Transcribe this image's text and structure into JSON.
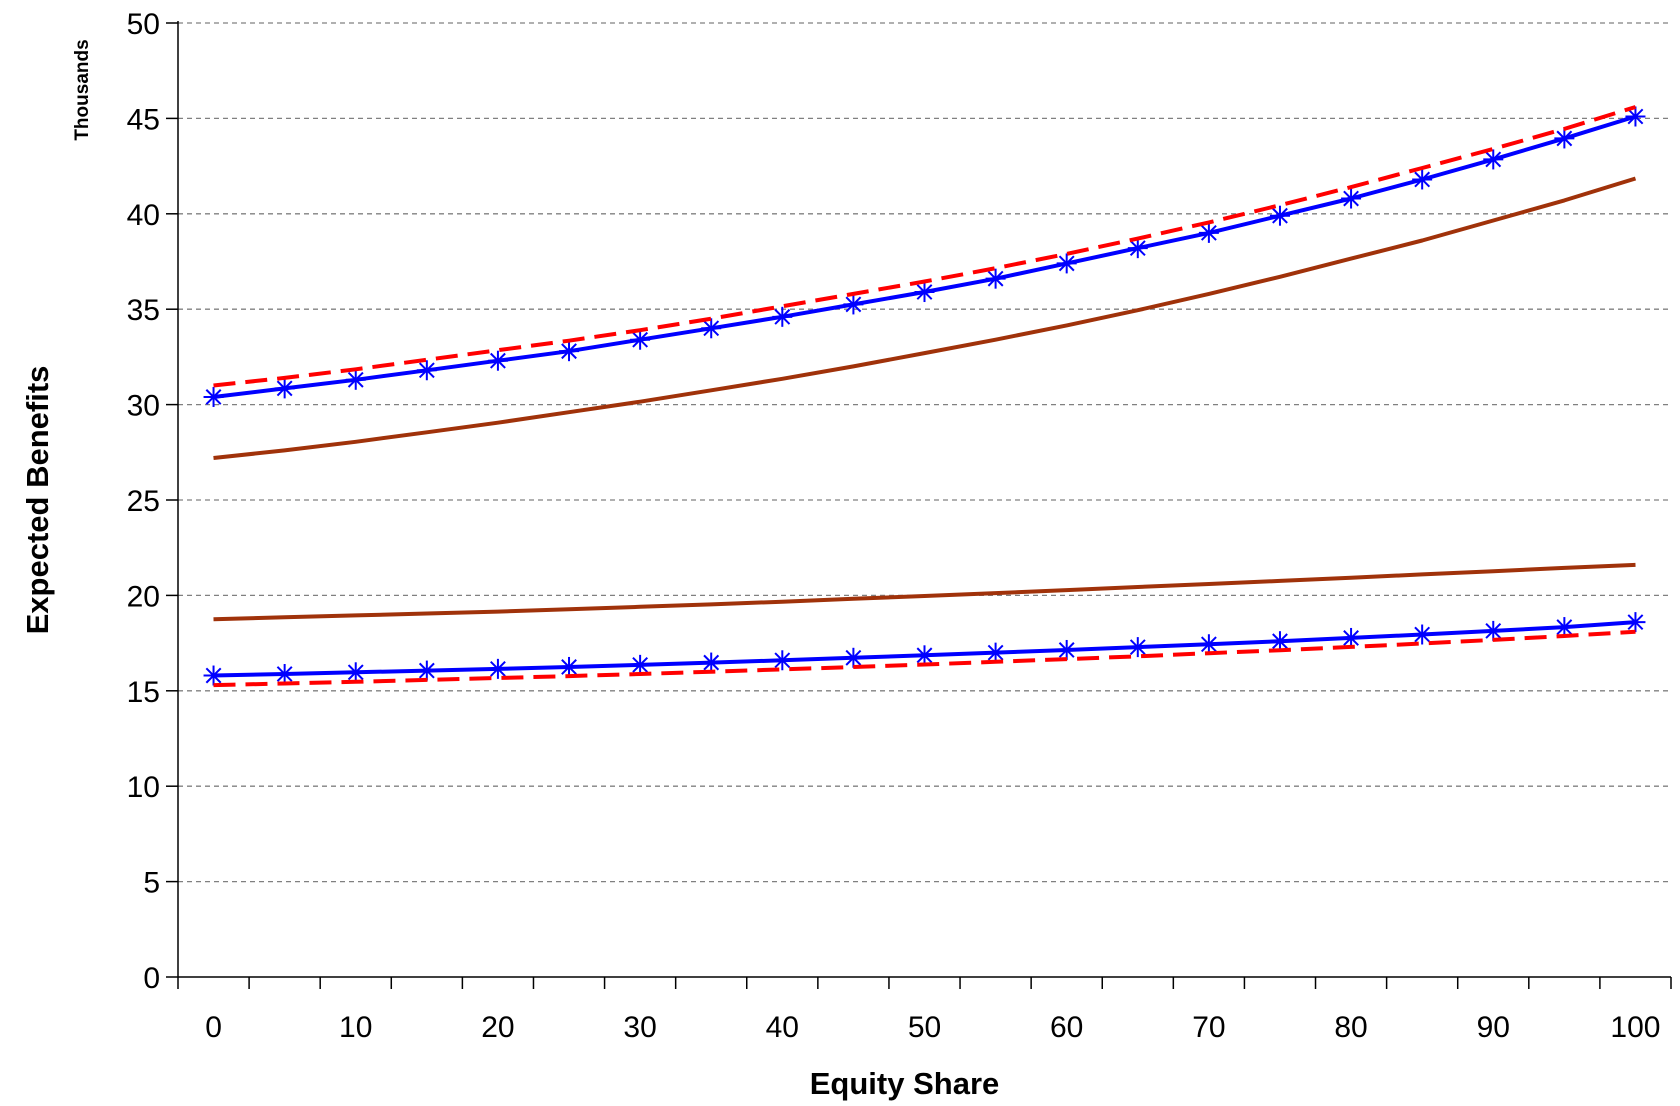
{
  "chart_data": {
    "type": "line",
    "title": "",
    "xlabel": "Equity Share",
    "ylabel": "Expected Benefits",
    "y_units_label": "Thousands",
    "xlim": [
      -2.5,
      102.5
    ],
    "ylim": [
      0,
      50
    ],
    "x_ticks": [
      0,
      10,
      20,
      30,
      40,
      50,
      60,
      70,
      80,
      90,
      100
    ],
    "y_ticks": [
      0,
      5,
      10,
      15,
      20,
      25,
      30,
      35,
      40,
      45,
      50
    ],
    "grid": "horizontal-dashed",
    "legend": "none",
    "x": [
      0,
      5,
      10,
      15,
      20,
      25,
      30,
      35,
      40,
      45,
      50,
      55,
      60,
      65,
      70,
      75,
      80,
      85,
      90,
      95,
      100
    ],
    "series": [
      {
        "color": "#0000ff",
        "style": "solid",
        "marker": "asterisk",
        "values": [
          30.4,
          30.85,
          31.3,
          31.8,
          32.3,
          32.8,
          33.4,
          34.0,
          34.6,
          35.25,
          35.9,
          36.6,
          37.4,
          38.2,
          39.0,
          39.9,
          40.8,
          41.8,
          42.85,
          43.95,
          45.1
        ]
      },
      {
        "color": "#ff0000",
        "style": "dashed",
        "marker": "none",
        "values": [
          31.0,
          31.4,
          31.85,
          32.35,
          32.85,
          33.35,
          33.9,
          34.5,
          35.15,
          35.8,
          36.45,
          37.15,
          37.9,
          38.7,
          39.55,
          40.45,
          41.4,
          42.4,
          43.4,
          44.45,
          45.6
        ]
      },
      {
        "color": "#a0320a",
        "style": "solid",
        "marker": "none",
        "values": [
          27.2,
          27.6,
          28.05,
          28.55,
          29.05,
          29.6,
          30.15,
          30.75,
          31.35,
          32.0,
          32.7,
          33.4,
          34.15,
          34.95,
          35.8,
          36.7,
          37.65,
          38.6,
          39.65,
          40.7,
          41.85
        ]
      },
      {
        "color": "#a0320a",
        "style": "solid",
        "marker": "none",
        "values": [
          18.75,
          18.85,
          18.95,
          19.05,
          19.15,
          19.27,
          19.4,
          19.53,
          19.67,
          19.82,
          19.97,
          20.12,
          20.28,
          20.44,
          20.6,
          20.76,
          20.93,
          21.1,
          21.27,
          21.44,
          21.6
        ]
      },
      {
        "color": "#0000ff",
        "style": "solid",
        "marker": "asterisk",
        "values": [
          15.8,
          15.88,
          15.97,
          16.06,
          16.15,
          16.25,
          16.36,
          16.48,
          16.6,
          16.73,
          16.86,
          17.0,
          17.14,
          17.29,
          17.44,
          17.6,
          17.77,
          17.95,
          18.14,
          18.34,
          18.6
        ]
      },
      {
        "color": "#ff0000",
        "style": "dashed",
        "marker": "none",
        "values": [
          15.3,
          15.38,
          15.47,
          15.57,
          15.67,
          15.77,
          15.88,
          16.0,
          16.12,
          16.25,
          16.38,
          16.52,
          16.66,
          16.81,
          16.97,
          17.13,
          17.3,
          17.48,
          17.67,
          17.87,
          18.1
        ]
      }
    ]
  }
}
